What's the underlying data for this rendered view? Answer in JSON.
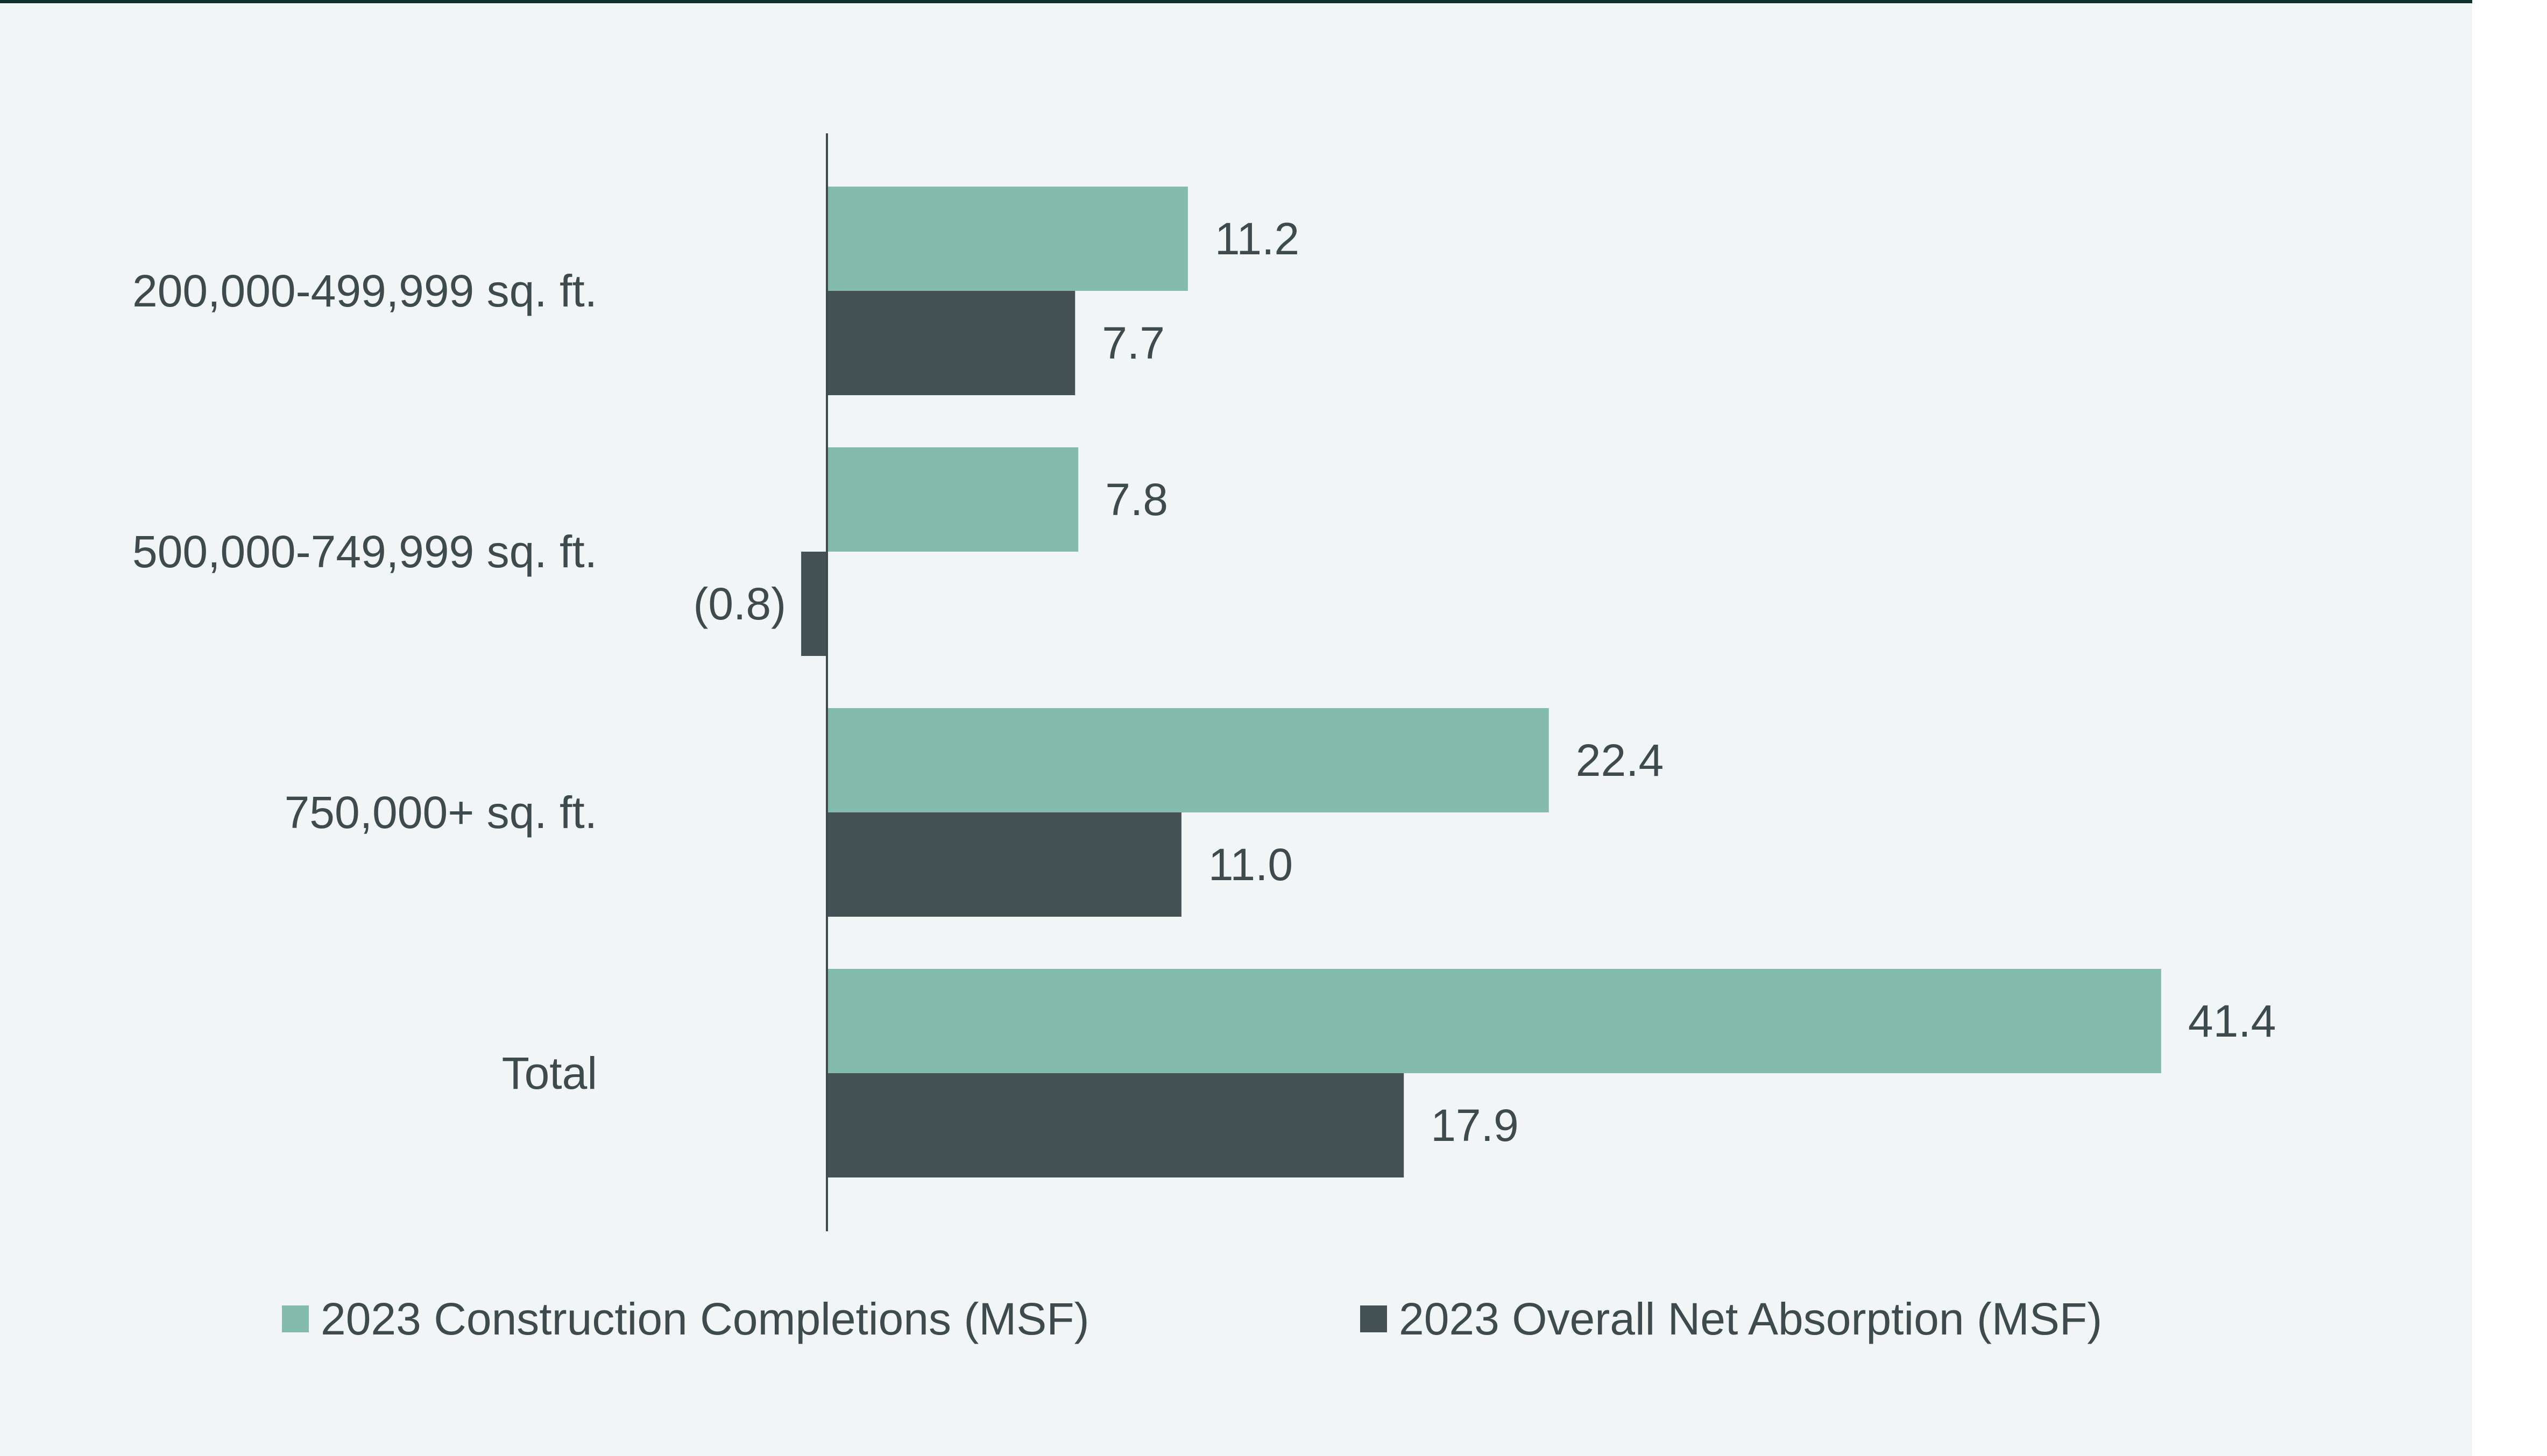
{
  "chart_data": {
    "type": "bar",
    "orientation": "horizontal",
    "categories": [
      "200,000-499,999 sq. ft.",
      "500,000-749,999 sq. ft.",
      "750,000+ sq. ft.",
      "Total"
    ],
    "series": [
      {
        "name": "2023 Construction Completions (MSF)",
        "color": "#83bbad",
        "values": [
          11.2,
          7.8,
          22.4,
          41.4
        ],
        "labels": [
          "11.2",
          "7.8",
          "22.4",
          "41.4"
        ]
      },
      {
        "name": "2023 Overall Net Absorption (MSF)",
        "color": "#445256",
        "values": [
          7.7,
          -0.8,
          11.0,
          17.9
        ],
        "labels": [
          "7.7",
          "(0.8)",
          "11.0",
          "17.9"
        ]
      }
    ],
    "title": "",
    "xlabel": "",
    "ylabel": "",
    "xlim": [
      -0.8,
      41.4
    ],
    "grid": false,
    "legend_position": "bottom"
  }
}
